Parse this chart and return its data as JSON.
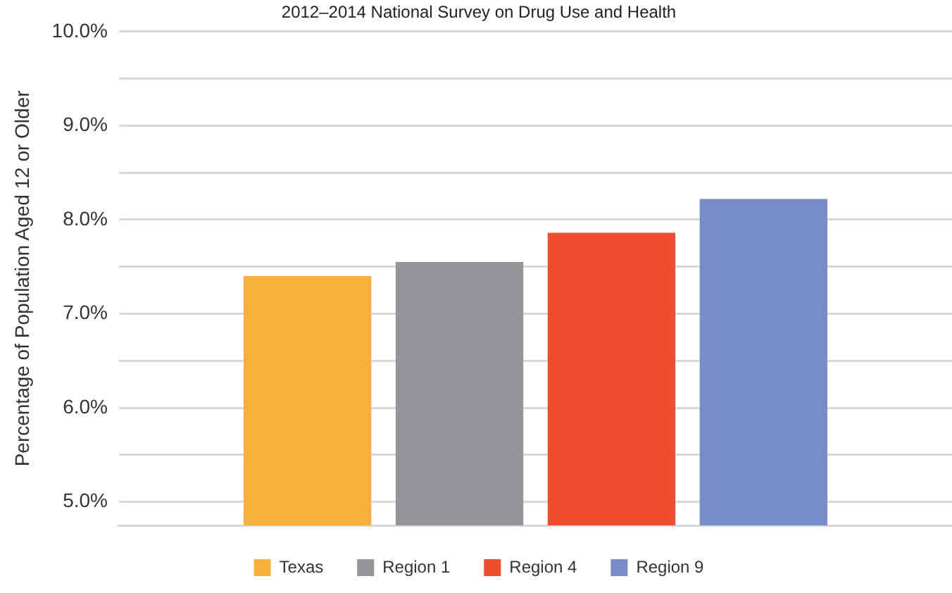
{
  "chart_data": {
    "type": "bar",
    "title": "2012–2014 National Survey on Drug Use and Health",
    "ylabel": "Percentage of Population Aged 12 or Older",
    "categories": [
      null
    ],
    "series": [
      {
        "name": "Texas",
        "color": "#f8b03c",
        "values": [
          7.4
        ]
      },
      {
        "name": "Region 1",
        "color": "#949598",
        "values": [
          7.55
        ]
      },
      {
        "name": "Region 4",
        "color": "#ee4e30",
        "values": [
          7.86
        ]
      },
      {
        "name": "Region 9",
        "color": "#788dc8",
        "values": [
          8.22
        ]
      }
    ],
    "ylim": [
      4.75,
      10
    ],
    "yticks": [
      {
        "value": 5,
        "label": "5.0%"
      },
      {
        "value": 5.5,
        "label": null
      },
      {
        "value": 6,
        "label": "6.0%"
      },
      {
        "value": 6.5,
        "label": null
      },
      {
        "value": 7,
        "label": "7.0%"
      },
      {
        "value": 7.5,
        "label": null
      },
      {
        "value": 8,
        "label": "8.0%"
      },
      {
        "value": 8.5,
        "label": null
      },
      {
        "value": 9,
        "label": "9.0%"
      },
      {
        "value": 9.5,
        "label": null
      },
      {
        "value": 10,
        "label": "10.0%"
      }
    ],
    "grid": "y",
    "legend": "bottom"
  }
}
